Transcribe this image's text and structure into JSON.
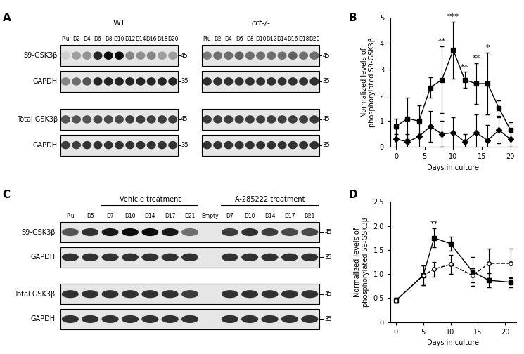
{
  "blots": [
    {
      "panel": "A",
      "title": "WT",
      "lanes": [
        "Plu",
        "D2",
        "D4",
        "D6",
        "D8",
        "D10",
        "D12",
        "D14",
        "D16",
        "D18",
        "D20"
      ],
      "rows": [
        {
          "name": "S9-GSK3β",
          "marker_kda": 45,
          "intensity": [
            0.2,
            0.4,
            0.45,
            0.9,
            1.0,
            1.0,
            0.5,
            0.45,
            0.5,
            0.4,
            0.4
          ]
        },
        {
          "name": "GAPDH",
          "marker_kda": 35,
          "intensity": [
            0.5,
            0.6,
            0.7,
            0.9,
            0.9,
            0.9,
            0.9,
            0.9,
            0.9,
            0.9,
            0.9
          ]
        },
        {
          "name": "Total GSK3β",
          "marker_kda": 45,
          "intensity": [
            0.7,
            0.7,
            0.7,
            0.75,
            0.75,
            0.75,
            0.8,
            0.8,
            0.8,
            0.8,
            0.8
          ]
        },
        {
          "name": "GAPDH",
          "marker_kda": 35,
          "intensity": [
            0.8,
            0.8,
            0.85,
            0.85,
            0.85,
            0.85,
            0.85,
            0.85,
            0.85,
            0.85,
            0.85
          ]
        }
      ]
    },
    {
      "title": "crt-/-",
      "lanes": [
        "Plu",
        "D2",
        "D4",
        "D6",
        "D8",
        "D10",
        "D12",
        "D14",
        "D16",
        "D18",
        "D20"
      ],
      "rows": [
        {
          "marker_kda": 45,
          "intensity": [
            0.55,
            0.6,
            0.6,
            0.65,
            0.6,
            0.6,
            0.6,
            0.6,
            0.65,
            0.6,
            0.6
          ]
        },
        {
          "marker_kda": 35,
          "intensity": [
            0.85,
            0.85,
            0.85,
            0.85,
            0.85,
            0.85,
            0.85,
            0.85,
            0.85,
            0.85,
            0.85
          ]
        },
        {
          "marker_kda": 45,
          "intensity": [
            0.8,
            0.8,
            0.8,
            0.8,
            0.8,
            0.8,
            0.8,
            0.8,
            0.8,
            0.8,
            0.8
          ]
        },
        {
          "marker_kda": 35,
          "intensity": [
            0.85,
            0.85,
            0.85,
            0.85,
            0.85,
            0.85,
            0.85,
            0.85,
            0.85,
            0.85,
            0.85
          ]
        }
      ]
    },
    {
      "panel": "C",
      "lanes": [
        "Plu",
        "D5",
        "D7",
        "D10",
        "D14",
        "D17",
        "D21",
        "Empty",
        "D7",
        "D10",
        "D14",
        "D17",
        "D21"
      ],
      "groups": [
        {
          "label": "Vehicle treatment",
          "lanes": [
            2,
            6
          ]
        },
        {
          "label": "A-285222 treatment",
          "lanes": [
            8,
            12
          ]
        }
      ],
      "rows": [
        {
          "name": "S9-GSK3β",
          "marker_kda": 45,
          "intensity": [
            0.7,
            0.85,
            0.95,
            1.0,
            1.0,
            0.95,
            0.6,
            0,
            0.8,
            0.85,
            0.8,
            0.75,
            0.75
          ]
        },
        {
          "name": "GAPDH",
          "marker_kda": 35,
          "intensity": [
            0.85,
            0.85,
            0.85,
            0.85,
            0.85,
            0.85,
            0.85,
            0,
            0.85,
            0.85,
            0.85,
            0.85,
            0.85
          ]
        },
        {
          "name": "Total GSK3β",
          "marker_kda": 45,
          "intensity": [
            0.85,
            0.85,
            0.85,
            0.85,
            0.85,
            0.85,
            0.8,
            0,
            0.85,
            0.85,
            0.85,
            0.85,
            0.85
          ]
        },
        {
          "name": "GAPDH",
          "marker_kda": 35,
          "intensity": [
            0.85,
            0.85,
            0.85,
            0.85,
            0.85,
            0.85,
            0.85,
            0,
            0.85,
            0.85,
            0.85,
            0.85,
            0.85
          ]
        }
      ]
    }
  ],
  "chart_data": [
    {
      "panel": "B",
      "type": "line",
      "x_label": "Days in culture",
      "y_label": "Normalized levels of\nphosphorylated S9-GSK3β",
      "x": [
        0,
        2,
        4,
        6,
        8,
        10,
        12,
        14,
        16,
        18,
        20
      ],
      "xlim": [
        -1,
        21
      ],
      "xticks": [
        0,
        5,
        10,
        15,
        20
      ],
      "ylim": [
        0,
        5
      ],
      "yticks": [
        0,
        1,
        2,
        3,
        4,
        5
      ],
      "series": [
        {
          "color": "#000000",
          "marker": "square",
          "line_style": "solid",
          "values": [
            0.8,
            1.1,
            1.0,
            2.3,
            2.6,
            3.75,
            2.6,
            2.45,
            2.45,
            1.5,
            0.65
          ],
          "errors": [
            0.3,
            0.8,
            0.6,
            0.4,
            1.3,
            1.1,
            0.3,
            0.8,
            1.2,
            0.3,
            0.3
          ]
        },
        {
          "color": "#000000",
          "marker": "diamond",
          "line_style": "solid",
          "values": [
            0.3,
            0.2,
            0.4,
            0.8,
            0.5,
            0.55,
            0.2,
            0.55,
            0.25,
            0.65,
            0.3
          ],
          "errors": [
            0.4,
            0.3,
            0.5,
            0.6,
            0.5,
            0.6,
            0.3,
            0.7,
            0.6,
            0.5,
            0.3
          ]
        }
      ],
      "annotations": [
        {
          "x": 8,
          "text": "**"
        },
        {
          "x": 10,
          "text": "***"
        },
        {
          "x": 12,
          "text": "**"
        },
        {
          "x": 14,
          "text": "**"
        },
        {
          "x": 16,
          "text": "*"
        }
      ]
    },
    {
      "panel": "D",
      "type": "line",
      "x_label": "Days in culture",
      "y_label": "Normalized levels of\nphosphorylated S9-GSK3β",
      "x": [
        0,
        5,
        7,
        10,
        14,
        17,
        21
      ],
      "xlim": [
        -1,
        22
      ],
      "xticks": [
        0,
        5,
        10,
        15,
        20
      ],
      "ylim": [
        0,
        2.5
      ],
      "yticks": [
        0,
        0.5,
        1.0,
        1.5,
        2.0,
        2.5
      ],
      "series": [
        {
          "color": "#000000",
          "marker": "square",
          "line_style": "solid",
          "values": [
            0.45,
            0.97,
            1.75,
            1.63,
            1.05,
            0.87,
            0.83
          ],
          "errors": [
            0.05,
            0.2,
            0.2,
            0.15,
            0.3,
            0.15,
            0.1
          ]
        },
        {
          "color": "#000000",
          "marker": "circle_open",
          "line_style": "dashed",
          "values": [
            0.45,
            0.97,
            1.1,
            1.2,
            0.97,
            1.22,
            1.22
          ],
          "errors": [
            0.05,
            0.2,
            0.15,
            0.2,
            0.15,
            0.3,
            0.3
          ]
        }
      ],
      "annotations": [
        {
          "x": 7,
          "text": "**"
        }
      ]
    }
  ]
}
